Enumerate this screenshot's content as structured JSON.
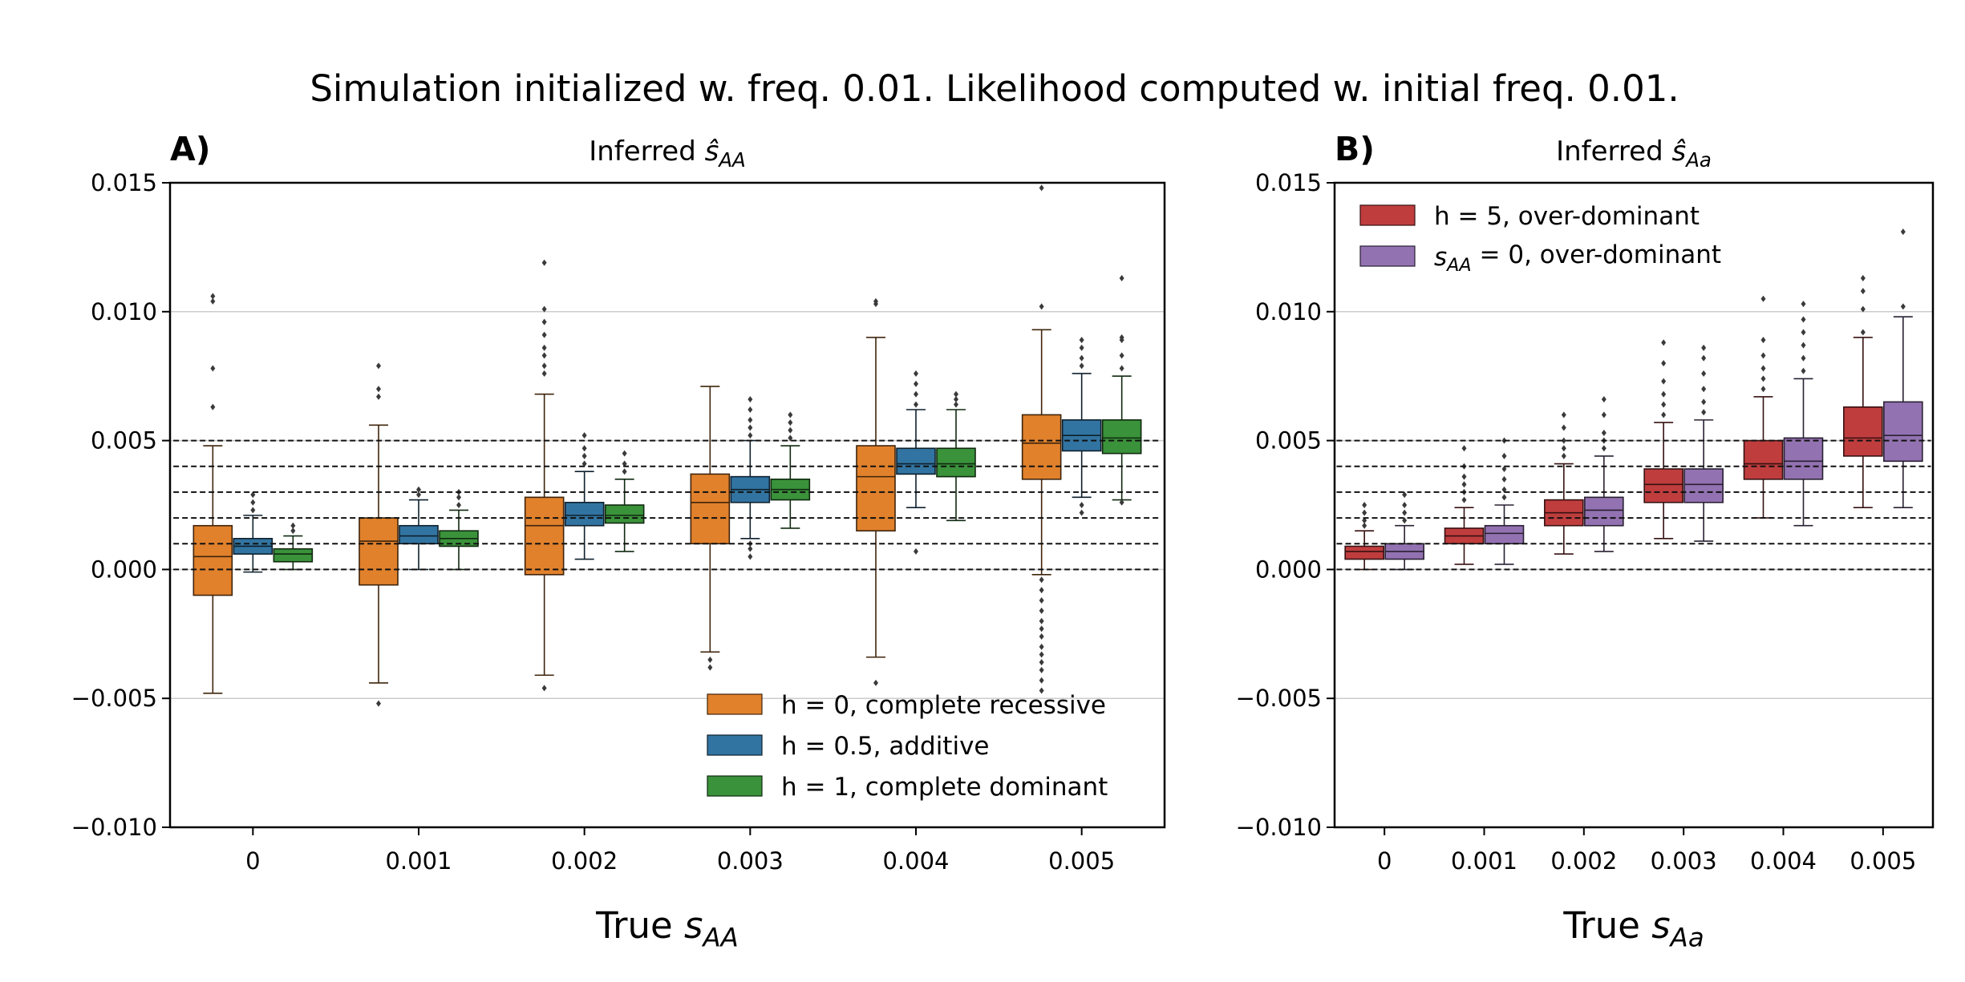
{
  "suptitle": "Simulation initialized w. freq. 0.01.  Likelihood computed w. initial freq. 0.01.",
  "chart_data": [
    {
      "type": "box",
      "panel_label": "A)",
      "title": "Inferred",
      "title_math": {
        "base": "ŝ",
        "sub": "AA"
      },
      "xlabel": "True",
      "xlabel_math": {
        "base": "s",
        "sub": "AA"
      },
      "categories": [
        "0",
        "0.001",
        "0.002",
        "0.003",
        "0.004",
        "0.005"
      ],
      "ylim": [
        -0.01,
        0.015
      ],
      "yticks": [
        "−0.010",
        "−0.005",
        "0.000",
        "0.005",
        "0.010",
        "0.015"
      ],
      "ytick_values": [
        -0.01,
        -0.005,
        0,
        0.005,
        0.01,
        0.015
      ],
      "grid": "horizontal",
      "reference_lines": [
        0,
        0.001,
        0.002,
        0.003,
        0.004,
        0.005
      ],
      "legend_position": "bottom-right",
      "series": [
        {
          "name": "h = 0, complete recessive",
          "color": "#e1812c",
          "boxes": [
            {
              "q1": -0.001,
              "median": 0.0005,
              "q3": 0.0017,
              "wlo": -0.0048,
              "whi": 0.0048,
              "outliers": [
                0.0063,
                0.0078,
                0.0104,
                0.0106
              ]
            },
            {
              "q1": -0.0006,
              "median": 0.0011,
              "q3": 0.002,
              "wlo": -0.0044,
              "whi": 0.0056,
              "outliers": [
                -0.0052,
                0.0067,
                0.007,
                0.0079
              ]
            },
            {
              "q1": -0.0002,
              "median": 0.0017,
              "q3": 0.0028,
              "wlo": -0.0041,
              "whi": 0.0068,
              "outliers": [
                -0.0046,
                0.0076,
                0.0079,
                0.0083,
                0.0086,
                0.0091,
                0.0096,
                0.0101,
                0.0119
              ]
            },
            {
              "q1": 0.001,
              "median": 0.0026,
              "q3": 0.0037,
              "wlo": -0.0032,
              "whi": 0.0071,
              "outliers": [
                -0.0035,
                -0.0038
              ]
            },
            {
              "q1": 0.0015,
              "median": 0.0036,
              "q3": 0.0048,
              "wlo": -0.0034,
              "whi": 0.009,
              "outliers": [
                -0.0044,
                0.0103,
                0.0104
              ]
            },
            {
              "q1": 0.0035,
              "median": 0.0049,
              "q3": 0.006,
              "wlo": -0.0002,
              "whi": 0.0093,
              "outliers": [
                -0.0004,
                -0.0008,
                -0.0012,
                -0.0016,
                -0.002,
                -0.0023,
                -0.0026,
                -0.003,
                -0.0033,
                -0.0036,
                -0.0039,
                -0.0043,
                -0.0047,
                0.0102,
                0.0148
              ]
            }
          ]
        },
        {
          "name": "h = 0.5, additive",
          "color": "#3274a1",
          "boxes": [
            {
              "q1": 0.0006,
              "median": 0.0009,
              "q3": 0.0012,
              "wlo": -0.0001,
              "whi": 0.0021,
              "outliers": [
                0.0023,
                0.0026,
                0.0029
              ]
            },
            {
              "q1": 0.001,
              "median": 0.0013,
              "q3": 0.0017,
              "wlo": 0.0,
              "whi": 0.0027,
              "outliers": [
                0.0029,
                0.0031
              ]
            },
            {
              "q1": 0.0017,
              "median": 0.0021,
              "q3": 0.0026,
              "wlo": 0.0004,
              "whi": 0.0038,
              "outliers": [
                0.0041,
                0.0044,
                0.0047,
                0.0052
              ]
            },
            {
              "q1": 0.0026,
              "median": 0.0031,
              "q3": 0.0036,
              "wlo": 0.0012,
              "whi": 0.005,
              "outliers": [
                0.0005,
                0.0008,
                0.001,
                0.0052,
                0.0055,
                0.0058,
                0.0062,
                0.0066
              ]
            },
            {
              "q1": 0.0037,
              "median": 0.0041,
              "q3": 0.0047,
              "wlo": 0.0024,
              "whi": 0.0062,
              "outliers": [
                0.0007,
                0.0064,
                0.0068,
                0.0072,
                0.0076
              ]
            },
            {
              "q1": 0.0046,
              "median": 0.0052,
              "q3": 0.0058,
              "wlo": 0.0028,
              "whi": 0.0076,
              "outliers": [
                0.0025,
                0.0022,
                0.0079,
                0.0082,
                0.0086,
                0.0089
              ]
            }
          ]
        },
        {
          "name": "h = 1, complete dominant",
          "color": "#3a923a",
          "boxes": [
            {
              "q1": 0.0003,
              "median": 0.0006,
              "q3": 0.0008,
              "wlo": 0.0,
              "whi": 0.0013,
              "outliers": [
                0.0015,
                0.0017
              ]
            },
            {
              "q1": 0.0009,
              "median": 0.0012,
              "q3": 0.0015,
              "wlo": 0.0,
              "whi": 0.0023,
              "outliers": [
                0.0025,
                0.0028,
                0.003
              ]
            },
            {
              "q1": 0.0018,
              "median": 0.0021,
              "q3": 0.0025,
              "wlo": 0.0007,
              "whi": 0.0035,
              "outliers": [
                0.0038,
                0.0041,
                0.0045
              ]
            },
            {
              "q1": 0.0027,
              "median": 0.0031,
              "q3": 0.0035,
              "wlo": 0.0016,
              "whi": 0.0048,
              "outliers": [
                0.0051,
                0.0054,
                0.0057,
                0.006
              ]
            },
            {
              "q1": 0.0036,
              "median": 0.0041,
              "q3": 0.0047,
              "wlo": 0.0019,
              "whi": 0.0062,
              "outliers": [
                0.0064,
                0.0066,
                0.0068
              ]
            },
            {
              "q1": 0.0045,
              "median": 0.0051,
              "q3": 0.0058,
              "wlo": 0.0027,
              "whi": 0.0075,
              "outliers": [
                0.0026,
                0.0078,
                0.0083,
                0.0089,
                0.009,
                0.0113
              ]
            }
          ]
        }
      ]
    },
    {
      "type": "box",
      "panel_label": "B)",
      "title": "Inferred",
      "title_math": {
        "base": "ŝ",
        "sub": "Aa"
      },
      "xlabel": "True",
      "xlabel_math": {
        "base": "s",
        "sub": "Aa"
      },
      "categories": [
        "0",
        "0.001",
        "0.002",
        "0.003",
        "0.004",
        "0.005"
      ],
      "ylim": [
        -0.01,
        0.015
      ],
      "yticks": [
        "−0.010",
        "−0.005",
        "0.000",
        "0.005",
        "0.010",
        "0.015"
      ],
      "ytick_values": [
        -0.01,
        -0.005,
        0,
        0.005,
        0.01,
        0.015
      ],
      "grid": "horizontal",
      "reference_lines": [
        0,
        0.001,
        0.002,
        0.003,
        0.004,
        0.005
      ],
      "legend_position": "top-left",
      "series": [
        {
          "name": "h = 5, over-dominant",
          "color": "#c03d3e",
          "boxes": [
            {
              "q1": 0.0004,
              "median": 0.0007,
              "q3": 0.0009,
              "wlo": 0.0,
              "whi": 0.0015,
              "outliers": [
                0.0017,
                0.0019,
                0.0022,
                0.0025
              ]
            },
            {
              "q1": 0.001,
              "median": 0.0013,
              "q3": 0.0016,
              "wlo": 0.0002,
              "whi": 0.0024,
              "outliers": [
                0.0027,
                0.003,
                0.0033,
                0.0036,
                0.004,
                0.0047
              ]
            },
            {
              "q1": 0.0017,
              "median": 0.0022,
              "q3": 0.0027,
              "wlo": 0.0006,
              "whi": 0.0041,
              "outliers": [
                0.0044,
                0.0047,
                0.005,
                0.0055,
                0.006
              ]
            },
            {
              "q1": 0.0026,
              "median": 0.0033,
              "q3": 0.0039,
              "wlo": 0.0012,
              "whi": 0.0057,
              "outliers": [
                0.006,
                0.0064,
                0.0068,
                0.0073,
                0.008,
                0.0088
              ]
            },
            {
              "q1": 0.0035,
              "median": 0.0041,
              "q3": 0.005,
              "wlo": 0.002,
              "whi": 0.0067,
              "outliers": [
                0.007,
                0.0074,
                0.0078,
                0.0083,
                0.0089,
                0.0105
              ]
            },
            {
              "q1": 0.0044,
              "median": 0.0051,
              "q3": 0.0063,
              "wlo": 0.0024,
              "whi": 0.009,
              "outliers": [
                0.0092,
                0.0101,
                0.0108,
                0.0113
              ]
            }
          ]
        },
        {
          "name": "s_AA = 0, over-dominant",
          "name_math": {
            "base": "s",
            "sub": "AA",
            "rest": " = 0, over-dominant"
          },
          "color": "#9372b2",
          "boxes": [
            {
              "q1": 0.0004,
              "median": 0.0007,
              "q3": 0.001,
              "wlo": 0.0,
              "whi": 0.0017,
              "outliers": [
                0.0019,
                0.0022,
                0.0025,
                0.0029
              ]
            },
            {
              "q1": 0.001,
              "median": 0.0014,
              "q3": 0.0017,
              "wlo": 0.0002,
              "whi": 0.0025,
              "outliers": [
                0.0028,
                0.0031,
                0.0035,
                0.0039,
                0.0044,
                0.005
              ]
            },
            {
              "q1": 0.0017,
              "median": 0.0023,
              "q3": 0.0028,
              "wlo": 0.0007,
              "whi": 0.0044,
              "outliers": [
                0.0047,
                0.005,
                0.0053,
                0.006,
                0.0066
              ]
            },
            {
              "q1": 0.0026,
              "median": 0.0033,
              "q3": 0.0039,
              "wlo": 0.0011,
              "whi": 0.0058,
              "outliers": [
                0.0061,
                0.0065,
                0.007,
                0.0076,
                0.0082,
                0.0086
              ]
            },
            {
              "q1": 0.0035,
              "median": 0.0042,
              "q3": 0.0051,
              "wlo": 0.0017,
              "whi": 0.0074,
              "outliers": [
                0.0077,
                0.0082,
                0.0087,
                0.0092,
                0.0097,
                0.0103
              ]
            },
            {
              "q1": 0.0042,
              "median": 0.0052,
              "q3": 0.0065,
              "wlo": 0.0024,
              "whi": 0.0098,
              "outliers": [
                0.0102,
                0.0131
              ]
            }
          ]
        }
      ]
    }
  ]
}
